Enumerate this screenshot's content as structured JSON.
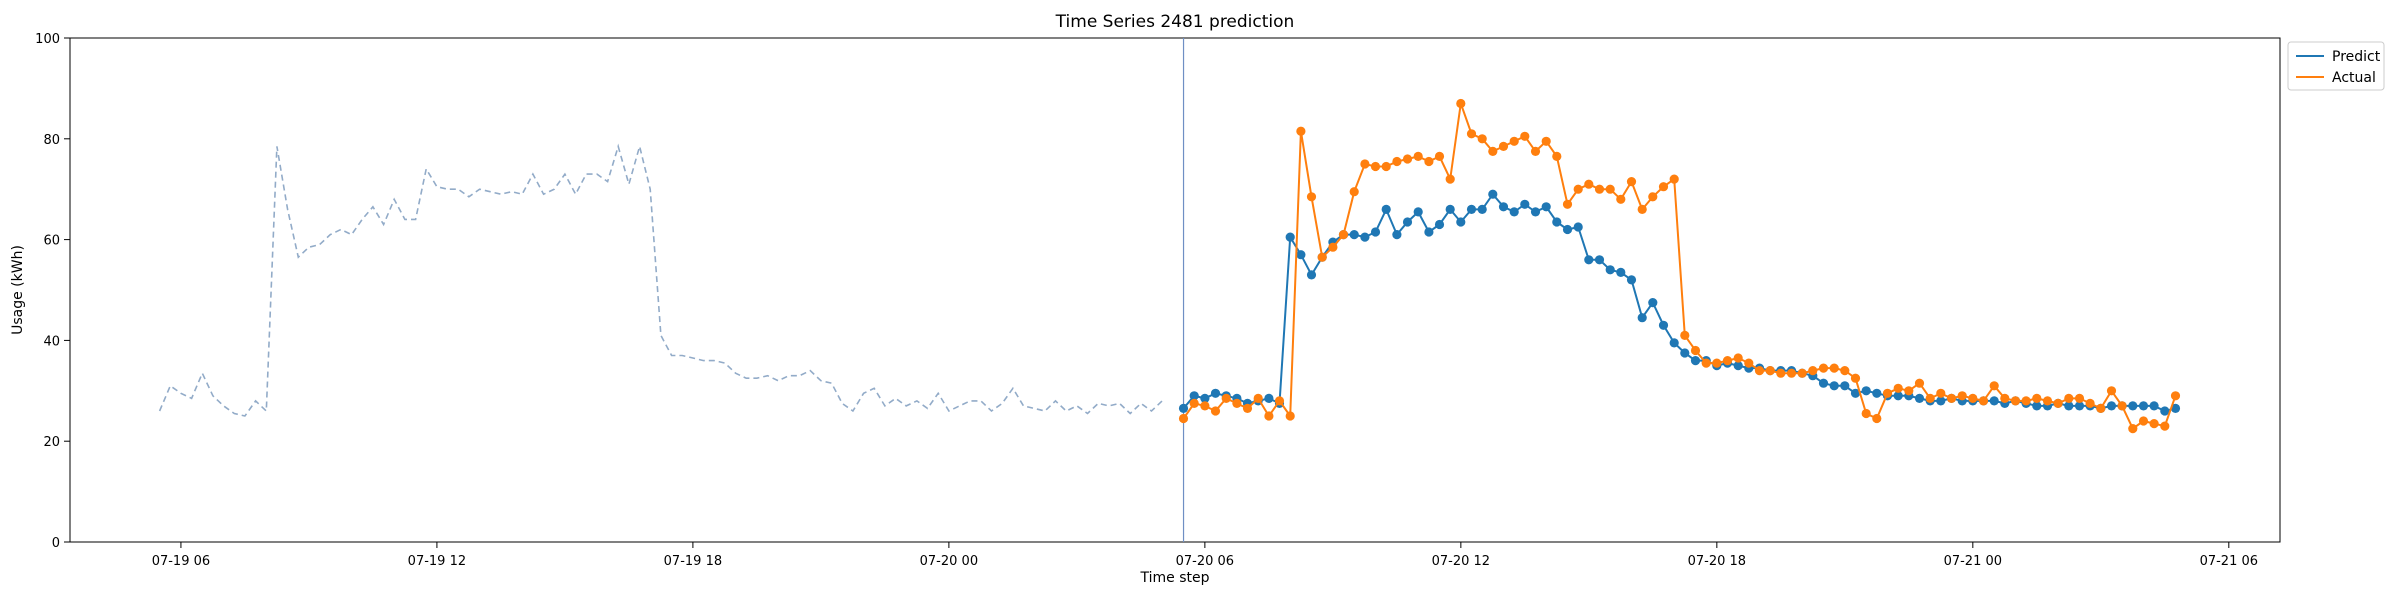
{
  "chart_data": {
    "type": "line",
    "title": "Time Series 2481 prediction",
    "xlabel": "Time step",
    "ylabel": "Usage (kWh)",
    "ylim": [
      0,
      100
    ],
    "y_ticks": [
      0,
      20,
      40,
      60,
      80,
      100
    ],
    "x_ticks": [
      "07-19 06",
      "07-19 12",
      "07-19 18",
      "07-20 00",
      "07-20 06",
      "07-20 12",
      "07-20 18",
      "07-21 00",
      "07-21 06"
    ],
    "x_range_hours": {
      "start": "2024-07-19 03:24",
      "end": "2024-07-21 07:12"
    },
    "grid": false,
    "legend_location": "upper-right-outside",
    "prediction_start": "07-20 05:30",
    "series": [
      {
        "name": "",
        "role": "history",
        "style": "dashed",
        "color": "#92abc8",
        "start": "07-19 05:30",
        "step_minutes": 15,
        "values": [
          26,
          31,
          29.5,
          28.5,
          33.5,
          29,
          27,
          25.5,
          25,
          28,
          26,
          78.5,
          66,
          56.5,
          58.5,
          59,
          61,
          62,
          61,
          64,
          66.5,
          63,
          68,
          64,
          64,
          74,
          70.5,
          70,
          70,
          68.5,
          70,
          69.5,
          69,
          69.5,
          69,
          73,
          69,
          70,
          73,
          69,
          73,
          73,
          71.5,
          78.5,
          71,
          78.5,
          70,
          41,
          37,
          37,
          36.5,
          36,
          36,
          35.5,
          33.5,
          32.5,
          32.5,
          33,
          32,
          33,
          33,
          34,
          32,
          31.5,
          27.5,
          26,
          29.5,
          30.5,
          27,
          28.5,
          27,
          28,
          26.5,
          29.5,
          26,
          27,
          28,
          28,
          26,
          27.5,
          30.5,
          27,
          26.5,
          26,
          28,
          26,
          27,
          25.5,
          27.5,
          27,
          27.5,
          25.5,
          27.5,
          26,
          28
        ]
      },
      {
        "name": "Predict",
        "role": "prediction",
        "style": "solid-markers",
        "color": "#1f77b4",
        "start": "07-20 05:30",
        "step_minutes": 15,
        "values": [
          26.5,
          29,
          28.5,
          29.5,
          29,
          28.5,
          27.5,
          28,
          28.5,
          27.5,
          60.5,
          57,
          53,
          56.5,
          59.5,
          61,
          61,
          60.5,
          61.5,
          66,
          61,
          63.5,
          65.5,
          61.5,
          63,
          66,
          63.5,
          66,
          66,
          69,
          66.5,
          65.5,
          67,
          65.5,
          66.5,
          63.5,
          62,
          62.5,
          56,
          56,
          54,
          53.5,
          52,
          44.5,
          47.5,
          43,
          39.5,
          37.5,
          36,
          36,
          35,
          35.5,
          35,
          34.5,
          34.5,
          34,
          34,
          34,
          33.5,
          33,
          31.5,
          31,
          31,
          29.5,
          30,
          29.5,
          29,
          29,
          29,
          28.5,
          28,
          28,
          28.5,
          28,
          28,
          28,
          28,
          27.5,
          28,
          27.5,
          27,
          27,
          27.5,
          27,
          27,
          27,
          26.5,
          27,
          27,
          27,
          27,
          27,
          26,
          26.5
        ]
      },
      {
        "name": "Actual",
        "role": "actual",
        "style": "solid-markers",
        "color": "#ff7f0e",
        "start": "07-20 05:30",
        "step_minutes": 15,
        "values": [
          24.5,
          27.5,
          27,
          26,
          28.5,
          27.5,
          26.5,
          28.5,
          25,
          28,
          25,
          81.5,
          68.5,
          56.5,
          58.5,
          61,
          69.5,
          75,
          74.5,
          74.5,
          75.5,
          76,
          76.5,
          75.5,
          76.5,
          72,
          87,
          81,
          80,
          77.5,
          78.5,
          79.5,
          80.5,
          77.5,
          79.5,
          76.5,
          67,
          70,
          71,
          70,
          70,
          68,
          71.5,
          66,
          68.5,
          70.5,
          72,
          41,
          38,
          35.5,
          35.5,
          36,
          36.5,
          35.5,
          34,
          34,
          33.5,
          33.5,
          33.5,
          34,
          34.5,
          34.5,
          34,
          32.5,
          25.5,
          24.5,
          29.5,
          30.5,
          30,
          31.5,
          28.5,
          29.5,
          28.5,
          29,
          28.5,
          28,
          31,
          28.5,
          28,
          28,
          28.5,
          28,
          27.5,
          28.5,
          28.5,
          27.5,
          26.5,
          30,
          27,
          22.5,
          24,
          23.5,
          23,
          29
        ]
      }
    ]
  }
}
